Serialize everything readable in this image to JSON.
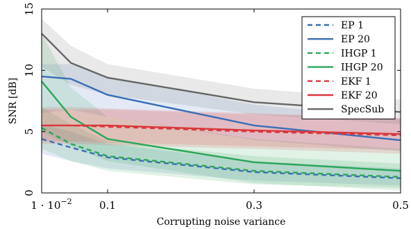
{
  "chart_data": {
    "type": "line",
    "title": "",
    "xlabel": "Corrupting noise variance",
    "ylabel": "SNR [dB]",
    "xlim": [
      0.01,
      0.5
    ],
    "ylim": [
      0,
      15
    ],
    "xticks": [
      0.01,
      0.1,
      0.3,
      0.5
    ],
    "xtick_labels": [
      "1 · 10",
      "0.1",
      "0.3",
      "0.5"
    ],
    "xtick_exponent": "−2",
    "yticks": [
      0,
      5,
      10,
      15
    ],
    "ytick_labels": [
      "0",
      "5",
      "10",
      "15"
    ],
    "legend_position": "top-right",
    "x": [
      0.01,
      0.05,
      0.1,
      0.3,
      0.5
    ],
    "series": [
      {
        "name": "EP 1",
        "color": "#3a6db5",
        "dash": true,
        "values": [
          4.4,
          3.7,
          2.9,
          1.7,
          1.2
        ],
        "band": [
          [
            3.2,
            5.6
          ],
          [
            2.6,
            5.0
          ],
          [
            2.0,
            4.0
          ],
          [
            1.0,
            2.6
          ],
          [
            0.6,
            2.0
          ]
        ]
      },
      {
        "name": "EP 20",
        "color": "#3a6db5",
        "dash": false,
        "values": [
          9.5,
          9.3,
          8.0,
          5.5,
          4.3
        ],
        "band": [
          [
            6.5,
            10.5
          ],
          [
            6.8,
            10.5
          ],
          [
            6.2,
            9.5
          ],
          [
            4.3,
            7.2
          ],
          [
            3.4,
            6.0
          ]
        ]
      },
      {
        "name": "IHGP 1",
        "color": "#2aa558",
        "dash": true,
        "values": [
          5.3,
          4.0,
          3.0,
          1.8,
          1.3
        ],
        "band": [
          [
            3.6,
            7.0
          ],
          [
            2.6,
            5.6
          ],
          [
            1.8,
            4.2
          ],
          [
            0.7,
            3.0
          ],
          [
            0.4,
            2.4
          ]
        ]
      },
      {
        "name": "IHGP 20",
        "color": "#2aa558",
        "dash": false,
        "values": [
          9.1,
          6.2,
          4.4,
          2.5,
          1.8
        ],
        "band": [
          [
            5.0,
            13.0
          ],
          [
            3.8,
            8.6
          ],
          [
            2.6,
            6.2
          ],
          [
            0.8,
            4.4
          ],
          [
            0.2,
            3.6
          ]
        ]
      },
      {
        "name": "EKF 1",
        "color": "#d9373c",
        "dash": true,
        "values": [
          5.5,
          5.5,
          5.4,
          5.0,
          4.7
        ],
        "band": [
          [
            4.0,
            7.0
          ],
          [
            4.0,
            7.0
          ],
          [
            3.9,
            6.9
          ],
          [
            3.6,
            6.5
          ],
          [
            3.2,
            6.1
          ]
        ]
      },
      {
        "name": "EKF 20",
        "color": "#d9373c",
        "dash": false,
        "values": [
          5.5,
          5.5,
          5.5,
          5.1,
          4.8
        ],
        "band": [
          [
            4.2,
            6.8
          ],
          [
            4.2,
            6.8
          ],
          [
            4.1,
            6.8
          ],
          [
            3.8,
            6.4
          ],
          [
            3.5,
            6.1
          ]
        ]
      },
      {
        "name": "SpecSub",
        "color": "#666666",
        "dash": false,
        "values": [
          13.0,
          10.6,
          9.4,
          7.4,
          6.6
        ],
        "band": [
          [
            10.3,
            14.2
          ],
          [
            8.8,
            12.0
          ],
          [
            8.0,
            10.5
          ],
          [
            6.4,
            8.5
          ],
          [
            5.6,
            7.6
          ]
        ]
      }
    ]
  }
}
